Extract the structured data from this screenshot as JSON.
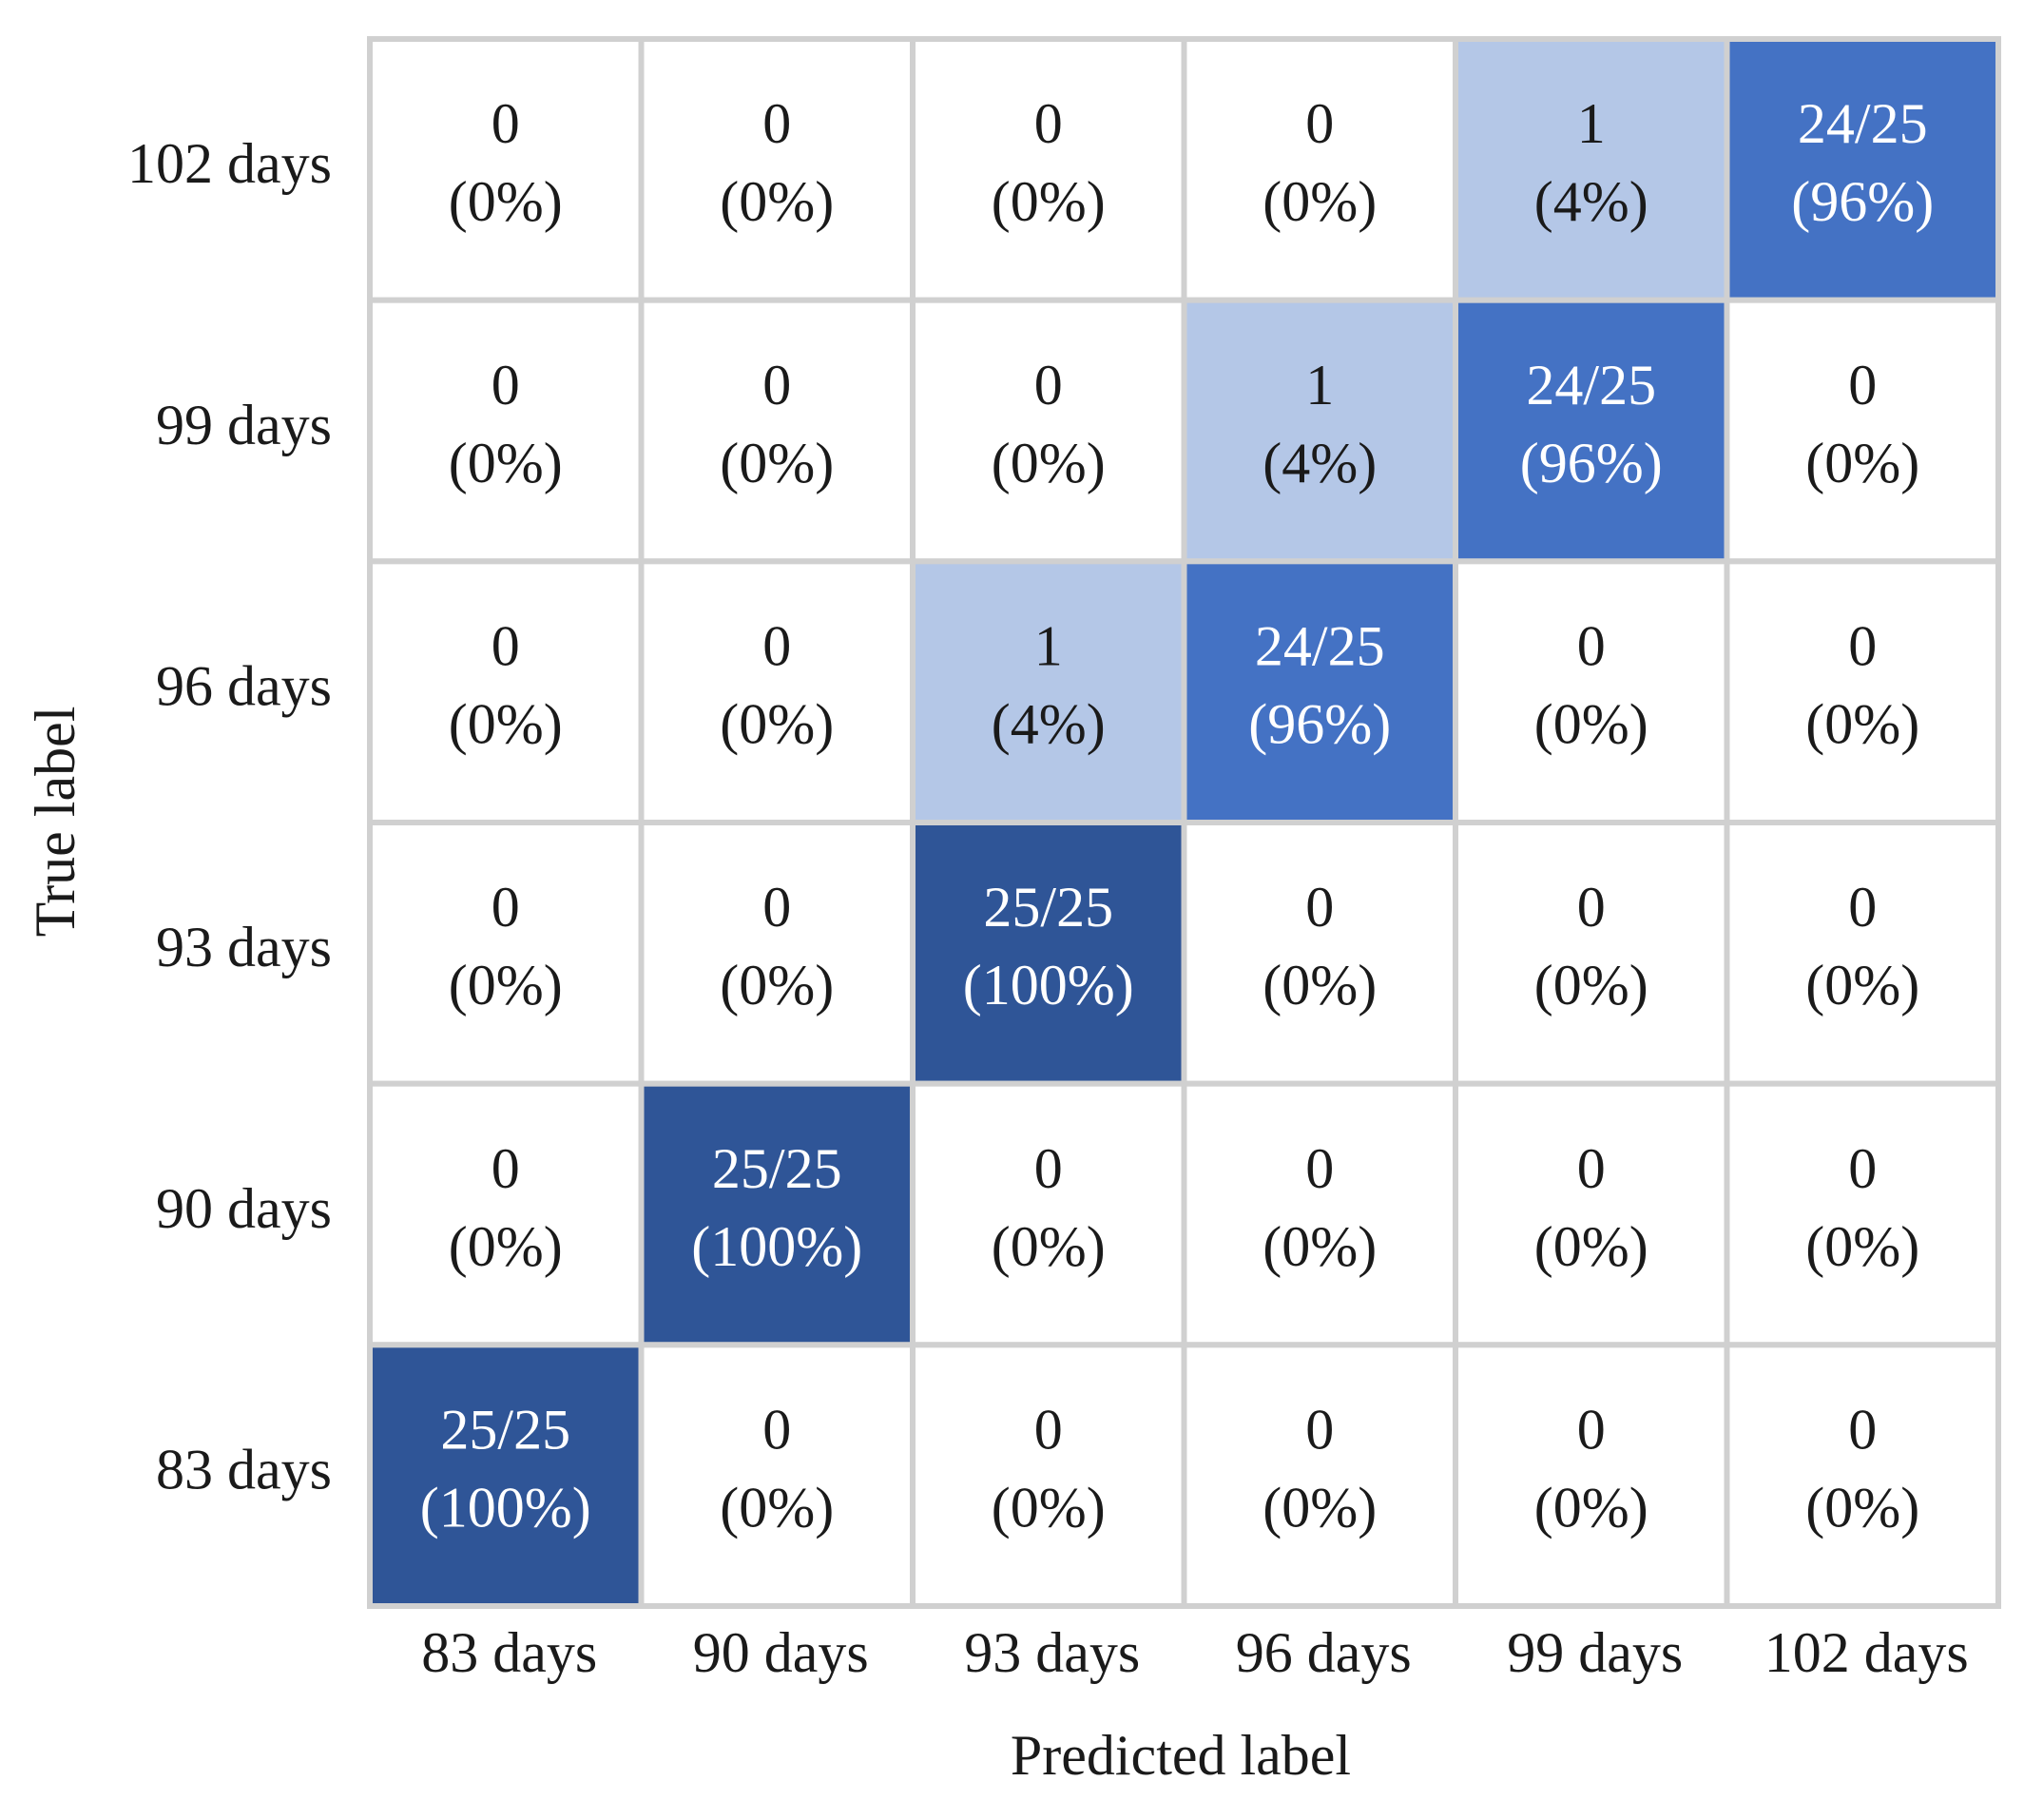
{
  "chart_data": {
    "type": "heatmap",
    "x_label": "Predicted label",
    "y_label": "True label",
    "x_categories": [
      "83 days",
      "90 days",
      "93 days",
      "96 days",
      "99 days",
      "102 days"
    ],
    "y_categories": [
      "102 days",
      "99 days",
      "96 days",
      "93 days",
      "90 days",
      "83 days"
    ],
    "values": [
      [
        0,
        0,
        0,
        0,
        4,
        96
      ],
      [
        0,
        0,
        0,
        4,
        96,
        0
      ],
      [
        0,
        0,
        4,
        96,
        0,
        0
      ],
      [
        0,
        0,
        100,
        0,
        0,
        0
      ],
      [
        0,
        100,
        0,
        0,
        0,
        0
      ],
      [
        100,
        0,
        0,
        0,
        0,
        0
      ]
    ],
    "count_labels": [
      [
        "0",
        "0",
        "0",
        "0",
        "1",
        "24/25"
      ],
      [
        "0",
        "0",
        "0",
        "1",
        "24/25",
        "0"
      ],
      [
        "0",
        "0",
        "1",
        "24/25",
        "0",
        "0"
      ],
      [
        "0",
        "0",
        "25/25",
        "0",
        "0",
        "0"
      ],
      [
        "0",
        "25/25",
        "0",
        "0",
        "0",
        "0"
      ],
      [
        "25/25",
        "0",
        "0",
        "0",
        "0",
        "0"
      ]
    ],
    "value_labels": [
      [
        "(0%)",
        "(0%)",
        "(0%)",
        "(0%)",
        "(4%)",
        "(96%)"
      ],
      [
        "(0%)",
        "(0%)",
        "(0%)",
        "(4%)",
        "(96%)",
        "(0%)"
      ],
      [
        "(0%)",
        "(0%)",
        "(4%)",
        "(96%)",
        "(0%)",
        "(0%)"
      ],
      [
        "(0%)",
        "(0%)",
        "(100%)",
        "(0%)",
        "(0%)",
        "(0%)"
      ],
      [
        "(0%)",
        "(100%)",
        "(0%)",
        "(0%)",
        "(0%)",
        "(0%)"
      ],
      [
        "(100%)",
        "(0%)",
        "(0%)",
        "(0%)",
        "(0%)",
        "(0%)"
      ]
    ],
    "cell_colors": [
      [
        "#ffffff",
        "#ffffff",
        "#ffffff",
        "#ffffff",
        "#b4c7e7",
        "#4472c4"
      ],
      [
        "#ffffff",
        "#ffffff",
        "#ffffff",
        "#b4c7e7",
        "#4472c4",
        "#ffffff"
      ],
      [
        "#ffffff",
        "#ffffff",
        "#b4c7e7",
        "#4472c4",
        "#ffffff",
        "#ffffff"
      ],
      [
        "#ffffff",
        "#ffffff",
        "#2f5597",
        "#ffffff",
        "#ffffff",
        "#ffffff"
      ],
      [
        "#ffffff",
        "#2f5597",
        "#ffffff",
        "#ffffff",
        "#ffffff",
        "#ffffff"
      ],
      [
        "#2f5597",
        "#ffffff",
        "#ffffff",
        "#ffffff",
        "#ffffff",
        "#ffffff"
      ]
    ]
  }
}
